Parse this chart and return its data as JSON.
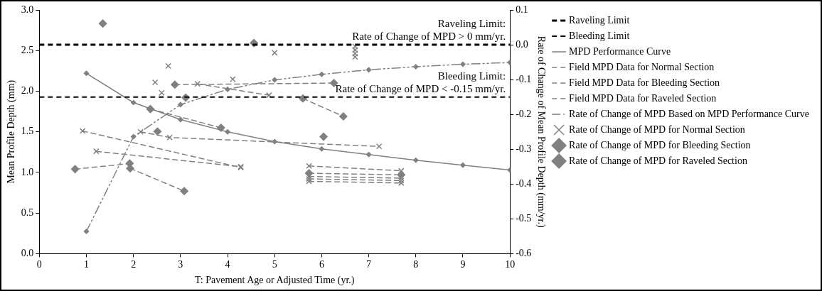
{
  "chart_data": {
    "type": "line",
    "xlabel": "T: Pavement Age or Adjusted Time (yr.)",
    "ylabel": "Mean Profile Depth (mm)",
    "y2label": "Rate of Change of Mean Profile Depth (mm/yr.)",
    "xlim": [
      0,
      10
    ],
    "xticks": [
      0,
      1,
      2,
      3,
      4,
      5,
      6,
      7,
      8,
      9,
      10
    ],
    "ylim": [
      0,
      3
    ],
    "yticks": [
      {
        "value": 0,
        "label": "0.0"
      },
      {
        "value": 0.5,
        "label": "0.5"
      },
      {
        "value": 1,
        "label": "1.0"
      },
      {
        "value": 1.5,
        "label": "1.5"
      },
      {
        "value": 2,
        "label": "2.0"
      },
      {
        "value": 2.5,
        "label": "2.5"
      },
      {
        "value": 3,
        "label": "3.0"
      }
    ],
    "y2lim": [
      -0.6,
      0.1
    ],
    "y2ticks": [
      {
        "value": -0.6,
        "label": "-0.6"
      },
      {
        "value": -0.5,
        "label": "-0.5"
      },
      {
        "value": -0.4,
        "label": "-0.4"
      },
      {
        "value": -0.3,
        "label": "-0.3"
      },
      {
        "value": -0.2,
        "label": "-0.2"
      },
      {
        "value": -0.1,
        "label": "-0.1"
      },
      {
        "value": 0,
        "label": "0.0"
      },
      {
        "value": 0.1,
        "label": "0.1"
      }
    ],
    "grid": false,
    "legend": "right",
    "ref_lines": [
      {
        "axis": "y2",
        "value": 0,
        "label": "Raveling Limit",
        "color": "#000000",
        "line_style": "dashed"
      },
      {
        "axis": "y2",
        "value": -0.15,
        "label": "Bleeding Limit",
        "color": "#000000",
        "line_style": "dashed"
      }
    ],
    "annotations": [
      "Raveling Limit:\nRate of Change of MPD > 0 mm/yr.",
      "Bleeding Limit:\nRate of Change of MPD < -0.15 mm/yr."
    ],
    "series": [
      {
        "name": "MPD Performance Curve",
        "type": "line",
        "color": "#808080",
        "marker": "diamond",
        "line_style": "solid",
        "x": [
          1,
          2,
          3,
          4,
          5,
          6,
          7,
          8,
          9,
          10
        ],
        "values": [
          2.22,
          1.86,
          1.65,
          1.5,
          1.38,
          1.29,
          1.22,
          1.15,
          1.09,
          1.03
        ]
      },
      {
        "name": "Field MPD Data for Normal Section",
        "type": "line",
        "color": "#808080",
        "marker": "cross",
        "line_style": "dashed",
        "x": [
          0.92,
          4.28
        ],
        "values": [
          1.51,
          1.06
        ]
      },
      {
        "type": "line",
        "color": "#808080",
        "marker": "cross",
        "line_style": "dashed",
        "x": [
          1.21,
          4.28
        ],
        "values": [
          1.26,
          1.07
        ]
      },
      {
        "type": "line",
        "color": "#808080",
        "marker": "cross",
        "line_style": "dashed",
        "x": [
          2.15,
          2.77,
          7.22
        ],
        "values": [
          1.5,
          1.43,
          1.32
        ]
      },
      {
        "type": "line",
        "color": "#808080",
        "marker": "cross",
        "line_style": "dashed",
        "x": [
          3.36,
          4.88
        ],
        "values": [
          2.09,
          1.95
        ]
      },
      {
        "type": "line",
        "color": "#808080",
        "marker": "cross",
        "line_style": "dashed",
        "x": [
          5.73,
          7.69
        ],
        "values": [
          1.08,
          1.02
        ]
      },
      {
        "type": "line",
        "color": "#808080",
        "marker": "cross",
        "line_style": "dashed",
        "x": [
          5.73,
          7.69
        ],
        "values": [
          0.95,
          0.93
        ]
      },
      {
        "type": "line",
        "color": "#808080",
        "marker": "cross",
        "line_style": "dashed",
        "x": [
          5.73,
          7.69
        ],
        "values": [
          0.92,
          0.9
        ]
      },
      {
        "type": "line",
        "color": "#808080",
        "marker": "cross",
        "line_style": "dashed",
        "x": [
          5.73,
          7.69
        ],
        "values": [
          0.89,
          0.87
        ]
      },
      {
        "name": "Field MPD Data for Bleeding Section",
        "type": "line",
        "color": "#808080",
        "marker": "diamond",
        "line_style": "dashed",
        "x": [
          1.93,
          3.08
        ],
        "values": [
          1.05,
          0.77
        ]
      },
      {
        "type": "line",
        "color": "#808080",
        "marker": "diamond",
        "line_style": "dashed",
        "x": [
          2.36,
          3.86
        ],
        "values": [
          1.78,
          1.55
        ]
      },
      {
        "type": "line",
        "color": "#808080",
        "marker": "diamond",
        "line_style": "dashed",
        "x": [
          5.6,
          6.46
        ],
        "values": [
          1.91,
          1.69
        ]
      },
      {
        "type": "line",
        "color": "#808080",
        "marker": "diamond",
        "line_style": "dashed",
        "x": [
          5.73,
          7.69
        ],
        "values": [
          0.99,
          0.97
        ]
      },
      {
        "name": "Field MPD Data for Raveled Section",
        "type": "line",
        "color": "#808080",
        "marker": "diamond",
        "line_style": "dashed",
        "x": [
          0.76,
          1.92
        ],
        "values": [
          1.04,
          1.11
        ]
      },
      {
        "type": "line",
        "color": "#808080",
        "marker": "diamond",
        "line_style": "dashed",
        "x": [
          2.88,
          6.26
        ],
        "values": [
          2.08,
          2.1
        ]
      },
      {
        "name": "Rate of Change of MPD Based on MPD Performance Curve",
        "type": "line",
        "axis": "y2",
        "color": "#808080",
        "marker": "diamond",
        "line_style": "dashdot",
        "x": [
          1,
          2,
          3,
          4,
          5,
          6,
          7,
          8,
          9,
          10
        ],
        "values": [
          -0.536,
          -0.264,
          -0.172,
          -0.128,
          -0.101,
          -0.085,
          -0.072,
          -0.063,
          -0.056,
          -0.051
        ]
      },
      {
        "name": "Rate of Change of MPD for Normal Section",
        "type": "scatter",
        "axis": "y2",
        "color": "#808080",
        "marker": "cross",
        "x": [
          2.46,
          2.6,
          2.74,
          4.11,
          5.0,
          6.71,
          6.71,
          6.71,
          6.71
        ],
        "values": [
          -0.108,
          -0.138,
          -0.061,
          -0.099,
          -0.023,
          -0.005,
          -0.015,
          -0.025,
          -0.035
        ]
      },
      {
        "name": "Rate of Change of MPD for Bleeding Section",
        "type": "scatter",
        "axis": "y2",
        "color": "#808080",
        "marker": "diamond",
        "x": [
          2.51,
          3.11,
          6.04
        ],
        "values": [
          -0.249,
          -0.152,
          -0.264
        ]
      },
      {
        "name": "Rate of Change of MPD for Raveled Section",
        "type": "scatter",
        "axis": "y2",
        "color": "#808080",
        "marker": "diamond",
        "x": [
          1.35,
          4.56
        ],
        "values": [
          0.061,
          0.005
        ]
      }
    ]
  }
}
